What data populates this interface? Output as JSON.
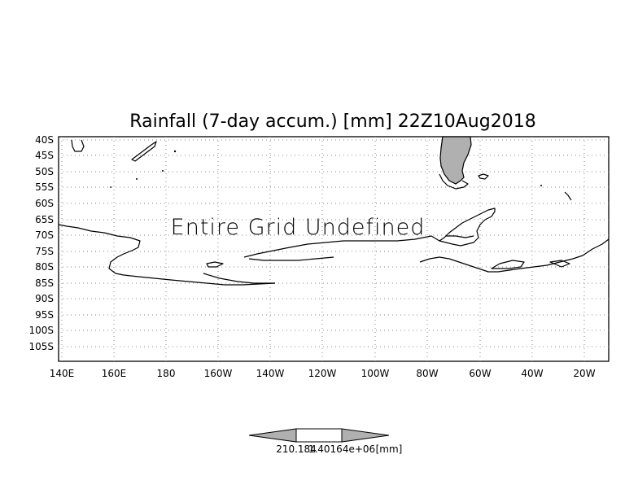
{
  "map": {
    "title": "Rainfall (7-day accum.) [mm] 22Z10Aug2018",
    "notice": "Entire Grid Undefined",
    "lat_labels": [
      "40S",
      "45S",
      "50S",
      "55S",
      "60S",
      "65S",
      "70S",
      "75S",
      "80S",
      "85S",
      "90S",
      "95S",
      "100S",
      "105S"
    ],
    "lon_labels": [
      "140E",
      "160E",
      "180",
      "160W",
      "140W",
      "120W",
      "100W",
      "80W",
      "60W",
      "40W",
      "20W"
    ],
    "colors": {
      "land_fill": "#b0b0b0",
      "coastline": "#000000",
      "grid": "#888888",
      "colorbar_end": "#b0b0b0"
    }
  },
  "colorbar": {
    "labels_overlapping": [
      "210.184",
      "1.40164e+06",
      "[mm]"
    ],
    "unit": "[mm]"
  }
}
